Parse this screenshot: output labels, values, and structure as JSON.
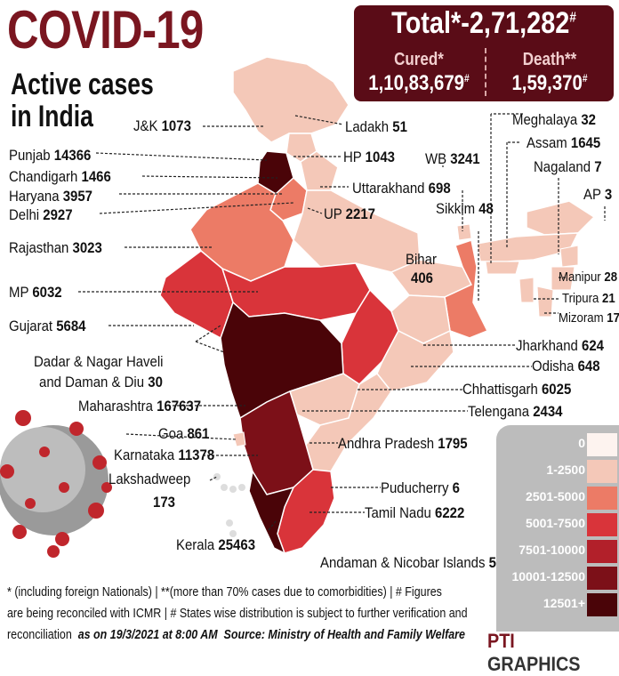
{
  "title": "COVID-19",
  "subtitle_line1": "Active cases",
  "subtitle_line2": "in India",
  "totals": {
    "total_text": "Total*-2,71,282",
    "total_mark": "#",
    "cured_label": "Cured*",
    "cured_value": "1,10,83,679",
    "cured_mark": "#",
    "death_label": "Death**",
    "death_value": "1,59,370",
    "death_mark": "#"
  },
  "states": [
    {
      "name": "J&K",
      "value": "1073"
    },
    {
      "name": "Ladakh",
      "value": "51"
    },
    {
      "name": "Punjab",
      "value": "14366"
    },
    {
      "name": "HP",
      "value": "1043"
    },
    {
      "name": "Chandigarh",
      "value": "1466"
    },
    {
      "name": "Haryana",
      "value": "3957"
    },
    {
      "name": "Uttarakhand",
      "value": "698"
    },
    {
      "name": "Delhi",
      "value": "2927"
    },
    {
      "name": "UP",
      "value": "2217"
    },
    {
      "name": "Rajasthan",
      "value": "3023"
    },
    {
      "name": "MP",
      "value": "6032"
    },
    {
      "name": "Gujarat",
      "value": "5684"
    },
    {
      "name": "Dadar & Nagar Haveli",
      "name2": "and Daman & Diu",
      "value": "30"
    },
    {
      "name": "Maharashtra",
      "value": "167637"
    },
    {
      "name": "Goa",
      "value": "861"
    },
    {
      "name": "Karnataka",
      "value": "11378"
    },
    {
      "name": "Lakshadweep",
      "value": "173"
    },
    {
      "name": "Kerala",
      "value": "25463"
    },
    {
      "name": "Meghalaya",
      "value": "32"
    },
    {
      "name": "Assam",
      "value": "1645"
    },
    {
      "name": "Nagaland",
      "value": "7"
    },
    {
      "name": "WB",
      "value": "3241"
    },
    {
      "name": "AP",
      "value": "3"
    },
    {
      "name": "Sikkim",
      "value": "48"
    },
    {
      "name": "Bihar",
      "value": "406"
    },
    {
      "name": "Manipur",
      "value": "28"
    },
    {
      "name": "Tripura",
      "value": "21"
    },
    {
      "name": "Mizoram",
      "value": "17"
    },
    {
      "name": "Jharkhand",
      "value": "624"
    },
    {
      "name": "Odisha",
      "value": "648"
    },
    {
      "name": "Chhattisgarh",
      "value": "6025"
    },
    {
      "name": "Telengana",
      "value": "2434"
    },
    {
      "name": "Andhra Pradesh",
      "value": "1795"
    },
    {
      "name": "Puducherry",
      "value": "6"
    },
    {
      "name": "Tamil Nadu",
      "value": "6222"
    },
    {
      "name": "Andaman & Nicobar Islands",
      "value": "5"
    }
  ],
  "legend": [
    {
      "label": "0",
      "color": "#fdf3ef"
    },
    {
      "label": "1-2500",
      "color": "#f4c8b8"
    },
    {
      "label": "2501-5000",
      "color": "#ec7b66"
    },
    {
      "label": "5001-7500",
      "color": "#d9343a"
    },
    {
      "label": "7501-10000",
      "color": "#b2202a"
    },
    {
      "label": "10001-12500",
      "color": "#7c1018"
    },
    {
      "label": "12501+",
      "color": "#4a0408"
    }
  ],
  "footnote_line1": "* (including foreign Nationals) | **(more than 70% cases due to comorbidities) | # Figures",
  "footnote_line2": "are being reconciled with ICMR | # States wise distribution is subject to further verification and",
  "footnote_line3a": "reconciliation",
  "footnote_line3b": "as on 19/3/2021 at 8:00 AM",
  "footnote_line3c": "Source: Ministry of Health and Family Welfare",
  "brand_a": "PTI",
  "brand_b": "GRAPHICS"
}
